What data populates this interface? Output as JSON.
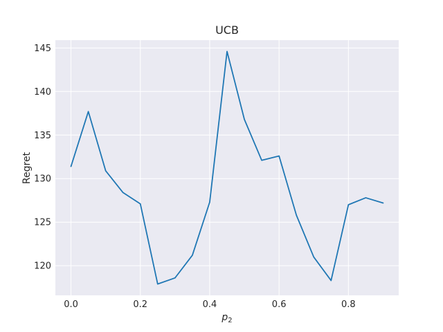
{
  "chart_data": {
    "type": "line",
    "title": "UCB",
    "xlabel_base": "p",
    "xlabel_sub": "2",
    "ylabel": "Regret",
    "xlim": [
      -0.045,
      0.945
    ],
    "ylim": [
      116.6,
      145.9
    ],
    "x_ticks": [
      0.0,
      0.2,
      0.4,
      0.6,
      0.8
    ],
    "x_tick_labels": [
      "0.0",
      "0.2",
      "0.4",
      "0.6",
      "0.8"
    ],
    "y_ticks": [
      120,
      125,
      130,
      135,
      140,
      145
    ],
    "y_tick_labels": [
      "120",
      "125",
      "130",
      "135",
      "140",
      "145"
    ],
    "grid": true,
    "series": [
      {
        "color": "#1f77b4",
        "x": [
          0.0,
          0.05,
          0.1,
          0.15,
          0.2,
          0.25,
          0.3,
          0.35,
          0.4,
          0.45,
          0.5,
          0.55,
          0.6,
          0.65,
          0.7,
          0.75,
          0.8,
          0.85,
          0.9
        ],
        "y": [
          131.4,
          137.7,
          130.9,
          128.4,
          127.1,
          117.9,
          118.6,
          121.2,
          127.3,
          144.6,
          136.8,
          132.1,
          132.6,
          125.8,
          121.0,
          118.3,
          127.0,
          127.8,
          127.2
        ]
      }
    ]
  }
}
